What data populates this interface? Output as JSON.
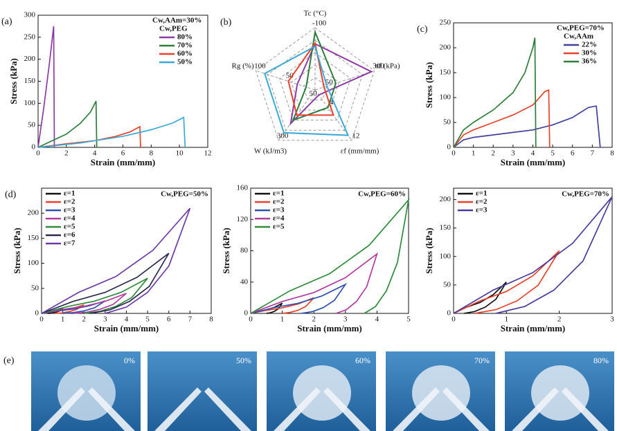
{
  "chart_data": [
    {
      "type": "line",
      "panel": "(a)",
      "xlabel": "Strain (mm/mm)",
      "ylabel": "Stress (kPa)",
      "xlim": [
        0,
        12
      ],
      "xticks": [
        0,
        2,
        4,
        6,
        8,
        10,
        12
      ],
      "ylim": [
        0,
        300
      ],
      "yticks": [
        0,
        50,
        100,
        150,
        200,
        250,
        300
      ],
      "legend": "upper right",
      "legend_title": [
        "Cw,AAm=30%",
        "Cw,PEG"
      ],
      "series": [
        {
          "name": "80%",
          "color": "#8e3aa6",
          "x": [
            0,
            0.4,
            0.8,
            1.1,
            1.15
          ],
          "values": [
            0,
            90,
            190,
            275,
            0
          ]
        },
        {
          "name": "70%",
          "color": "#2e7d3a",
          "x": [
            0,
            1,
            2,
            3,
            3.7,
            4.1,
            4.15
          ],
          "values": [
            0,
            15,
            30,
            55,
            80,
            105,
            0
          ]
        },
        {
          "name": "60%",
          "color": "#e8402a",
          "x": [
            0,
            2,
            4,
            5.5,
            6.5,
            7.2,
            7.25
          ],
          "values": [
            0,
            8,
            15,
            25,
            35,
            47,
            0
          ]
        },
        {
          "name": "50%",
          "color": "#3aa8d8",
          "x": [
            0,
            3,
            6,
            8,
            9.5,
            10.3,
            10.4
          ],
          "values": [
            0,
            10,
            25,
            40,
            55,
            68,
            0
          ]
        }
      ]
    },
    {
      "type": "radar",
      "panel": "(b)",
      "axes": [
        {
          "label": "Tc (°C)",
          "lim": [
            0,
            -100
          ],
          "ticks": [
            -100
          ]
        },
        {
          "label": "σf (kPa)",
          "lim": [
            0,
            300
          ],
          "ticks": [
            50,
            300
          ]
        },
        {
          "label": "εf (mm/mm)",
          "lim": [
            0,
            12
          ],
          "ticks": [
            4,
            12
          ]
        },
        {
          "label": "W (kJ/m3)",
          "lim": [
            0,
            300
          ],
          "ticks": [
            50,
            300
          ]
        },
        {
          "label": "Rg (%)",
          "lim": [
            0,
            100
          ],
          "ticks": [
            50,
            100
          ]
        }
      ],
      "series": [
        {
          "color": "#8e3aa6",
          "values": [
            -74,
            285,
            1.2,
            200,
            30
          ]
        },
        {
          "color": "#2e7d3a",
          "values": [
            -93,
            105,
            4.2,
            180,
            15
          ]
        },
        {
          "color": "#e8402a",
          "values": [
            -75,
            45,
            6,
            150,
            45
          ]
        },
        {
          "color": "#3aa8d8",
          "values": [
            -70,
            60,
            10.8,
            255,
            85
          ]
        }
      ]
    },
    {
      "type": "line",
      "panel": "(c)",
      "xlabel": "Strain (mm/mm)",
      "ylabel": "Stress (kPa)",
      "xlim": [
        0,
        8
      ],
      "xticks": [
        0,
        1,
        2,
        3,
        4,
        5,
        6,
        7,
        8
      ],
      "ylim": [
        0,
        250
      ],
      "yticks": [
        0,
        50,
        100,
        150,
        200,
        250
      ],
      "legend": "upper right",
      "legend_title": [
        "Cw,PEG=70%",
        "Cw,AAm"
      ],
      "series": [
        {
          "name": "22%",
          "color": "#4040a0",
          "x": [
            0,
            0.5,
            1,
            2,
            3,
            4,
            5,
            6,
            6.8,
            7.2,
            7.4
          ],
          "values": [
            0,
            15,
            20,
            25,
            30,
            35,
            45,
            60,
            80,
            83,
            0
          ]
        },
        {
          "name": "30%",
          "color": "#e8402a",
          "x": [
            0,
            0.5,
            1,
            2,
            3,
            4,
            4.6,
            4.8,
            4.85
          ],
          "values": [
            0,
            25,
            35,
            50,
            65,
            85,
            112,
            115,
            0
          ]
        },
        {
          "name": "36%",
          "color": "#2e7d3a",
          "x": [
            0,
            0.5,
            1,
            2,
            3,
            3.6,
            4,
            4.1,
            4.15
          ],
          "values": [
            0,
            35,
            50,
            75,
            110,
            150,
            200,
            220,
            0
          ]
        }
      ]
    },
    {
      "type": "line",
      "panel": "(d)",
      "xlabel": "Strain (mm/mm)",
      "ylabel": "Stress (kPa)",
      "xlim": [
        0,
        8
      ],
      "xticks": [
        0,
        1,
        2,
        3,
        4,
        5,
        6,
        7,
        8
      ],
      "ylim": [
        0,
        250
      ],
      "yticks": [
        0,
        50,
        100,
        150,
        200
      ],
      "legend": "upper left",
      "annotation": "Cw,PEG=50%",
      "series": [
        {
          "name": "ε=1",
          "color": "#111111",
          "x": [
            0,
            0.25,
            0.5,
            0.75,
            1,
            0.83,
            0.65,
            0.48,
            0.3
          ],
          "values": [
            0,
            2,
            3.5,
            6,
            10,
            4.5,
            2,
            0.6,
            0
          ]
        },
        {
          "name": "ε=2",
          "color": "#e8402a",
          "x": [
            0,
            0.5,
            1,
            1.5,
            2,
            1.65,
            1.3,
            0.95,
            0.6
          ],
          "values": [
            0,
            3.4,
            6,
            10.2,
            17,
            7.7,
            3.4,
            1,
            0
          ]
        },
        {
          "name": "ε=3",
          "color": "#3050b0",
          "x": [
            0,
            0.75,
            1.5,
            2.25,
            3,
            2.5,
            2,
            1.5,
            1
          ],
          "values": [
            0,
            5,
            8.8,
            15,
            25,
            11.3,
            5,
            1.5,
            0
          ]
        },
        {
          "name": "ε=4",
          "color": "#b03aa0",
          "x": [
            0,
            1,
            2,
            3,
            4,
            3.375,
            2.75,
            2.125,
            1.5
          ],
          "values": [
            0,
            8,
            14,
            24,
            40,
            18,
            8,
            2.4,
            0
          ]
        },
        {
          "name": "ε=5",
          "color": "#2e8a3a",
          "x": [
            0,
            1.25,
            2.5,
            3.75,
            5,
            4.25,
            3.5,
            2.75,
            2
          ],
          "values": [
            0,
            14,
            24.5,
            42,
            70,
            31.5,
            14,
            4.2,
            0
          ]
        },
        {
          "name": "ε=6",
          "color": "#2a2a50",
          "x": [
            0,
            1.5,
            3,
            4.5,
            6,
            5.08,
            4.15,
            3.23,
            2.3
          ],
          "values": [
            0,
            24,
            42,
            72,
            120,
            54,
            24,
            7.2,
            0
          ]
        },
        {
          "name": "ε=7",
          "color": "#6a3aa8",
          "x": [
            0,
            1.75,
            3.5,
            5.25,
            7,
            6,
            5,
            4,
            3
          ],
          "values": [
            0,
            42,
            73.5,
            126,
            210,
            94.5,
            42,
            12.6,
            0
          ]
        }
      ]
    },
    {
      "type": "line",
      "xlabel": "Strain (mm/mm)",
      "ylabel": "Stress (kPa)",
      "xlim": [
        0,
        5
      ],
      "xticks": [
        0,
        1,
        2,
        3,
        4,
        5
      ],
      "ylim": [
        0,
        160
      ],
      "yticks": [
        0,
        40,
        80,
        120,
        160
      ],
      "legend": "upper left",
      "annotation": "Cw,PEG=60%",
      "series": [
        {
          "name": "ε=1",
          "color": "#111111",
          "x": [
            0,
            0.25,
            0.5,
            0.75,
            1,
            0.875,
            0.75,
            0.625,
            0.5
          ],
          "values": [
            0,
            2.6,
            4.55,
            7.8,
            13,
            5.85,
            2.6,
            0.78,
            0
          ]
        },
        {
          "name": "ε=2",
          "color": "#e8402a",
          "x": [
            0,
            0.5,
            1,
            1.5,
            2,
            1.75,
            1.5,
            1.25,
            1
          ],
          "values": [
            0,
            4,
            7,
            12,
            20,
            9,
            4,
            1.2,
            0
          ]
        },
        {
          "name": "ε=3",
          "color": "#3050b0",
          "x": [
            0,
            0.75,
            1.5,
            2.25,
            3,
            2.65,
            2.3,
            1.95,
            1.6
          ],
          "values": [
            0,
            7.4,
            12.95,
            22.2,
            37,
            16.65,
            7.4,
            2.22,
            0
          ]
        },
        {
          "name": "ε=4",
          "color": "#b03aa0",
          "x": [
            0,
            1,
            2,
            3,
            4,
            3.675,
            3.35,
            3.025,
            2.7
          ],
          "values": [
            0,
            15.2,
            26.6,
            45.6,
            76,
            34.2,
            15.2,
            4.56,
            0
          ]
        },
        {
          "name": "ε=5",
          "color": "#2e8a3a",
          "x": [
            0,
            1.25,
            2.5,
            3.75,
            5,
            4.65,
            4.3,
            3.95,
            3.6
          ],
          "values": [
            0,
            29,
            50.75,
            87,
            145,
            65.25,
            29,
            8.7,
            0
          ]
        }
      ]
    },
    {
      "type": "line",
      "xlabel": "Strain (mm/mm)",
      "ylabel": "Stress (kPa)",
      "xlim": [
        0,
        3
      ],
      "xticks": [
        0,
        1,
        2,
        3
      ],
      "ylim": [
        0,
        220
      ],
      "yticks": [
        0,
        50,
        100,
        150,
        200
      ],
      "legend": "upper left",
      "annotation": "Cw,PEG=70%",
      "series": [
        {
          "name": "ε=1",
          "color": "#111111",
          "x": [
            0,
            0.25,
            0.5,
            0.75,
            1,
            0.8,
            0.6,
            0.4,
            0.2
          ],
          "values": [
            0,
            11,
            19.25,
            33,
            55,
            24.75,
            11,
            3.3,
            0
          ]
        },
        {
          "name": "ε=2",
          "color": "#e8402a",
          "x": [
            0,
            0.5,
            1,
            1.5,
            2,
            1.6,
            1.2,
            0.8,
            0.4
          ],
          "values": [
            0,
            22,
            38.5,
            66,
            110,
            49.5,
            22,
            6.6,
            0
          ]
        },
        {
          "name": "ε=3",
          "color": "#4a3aa0",
          "x": [
            0,
            0.75,
            1.5,
            2.25,
            3,
            2.45,
            1.9,
            1.35,
            0.8
          ],
          "values": [
            0,
            41,
            71.75,
            123,
            205,
            92.25,
            41,
            12.3,
            0
          ]
        }
      ]
    }
  ],
  "photos": {
    "panel": "(e)",
    "labels": [
      "0%",
      "50%",
      "60%",
      "70%",
      "80%"
    ]
  }
}
